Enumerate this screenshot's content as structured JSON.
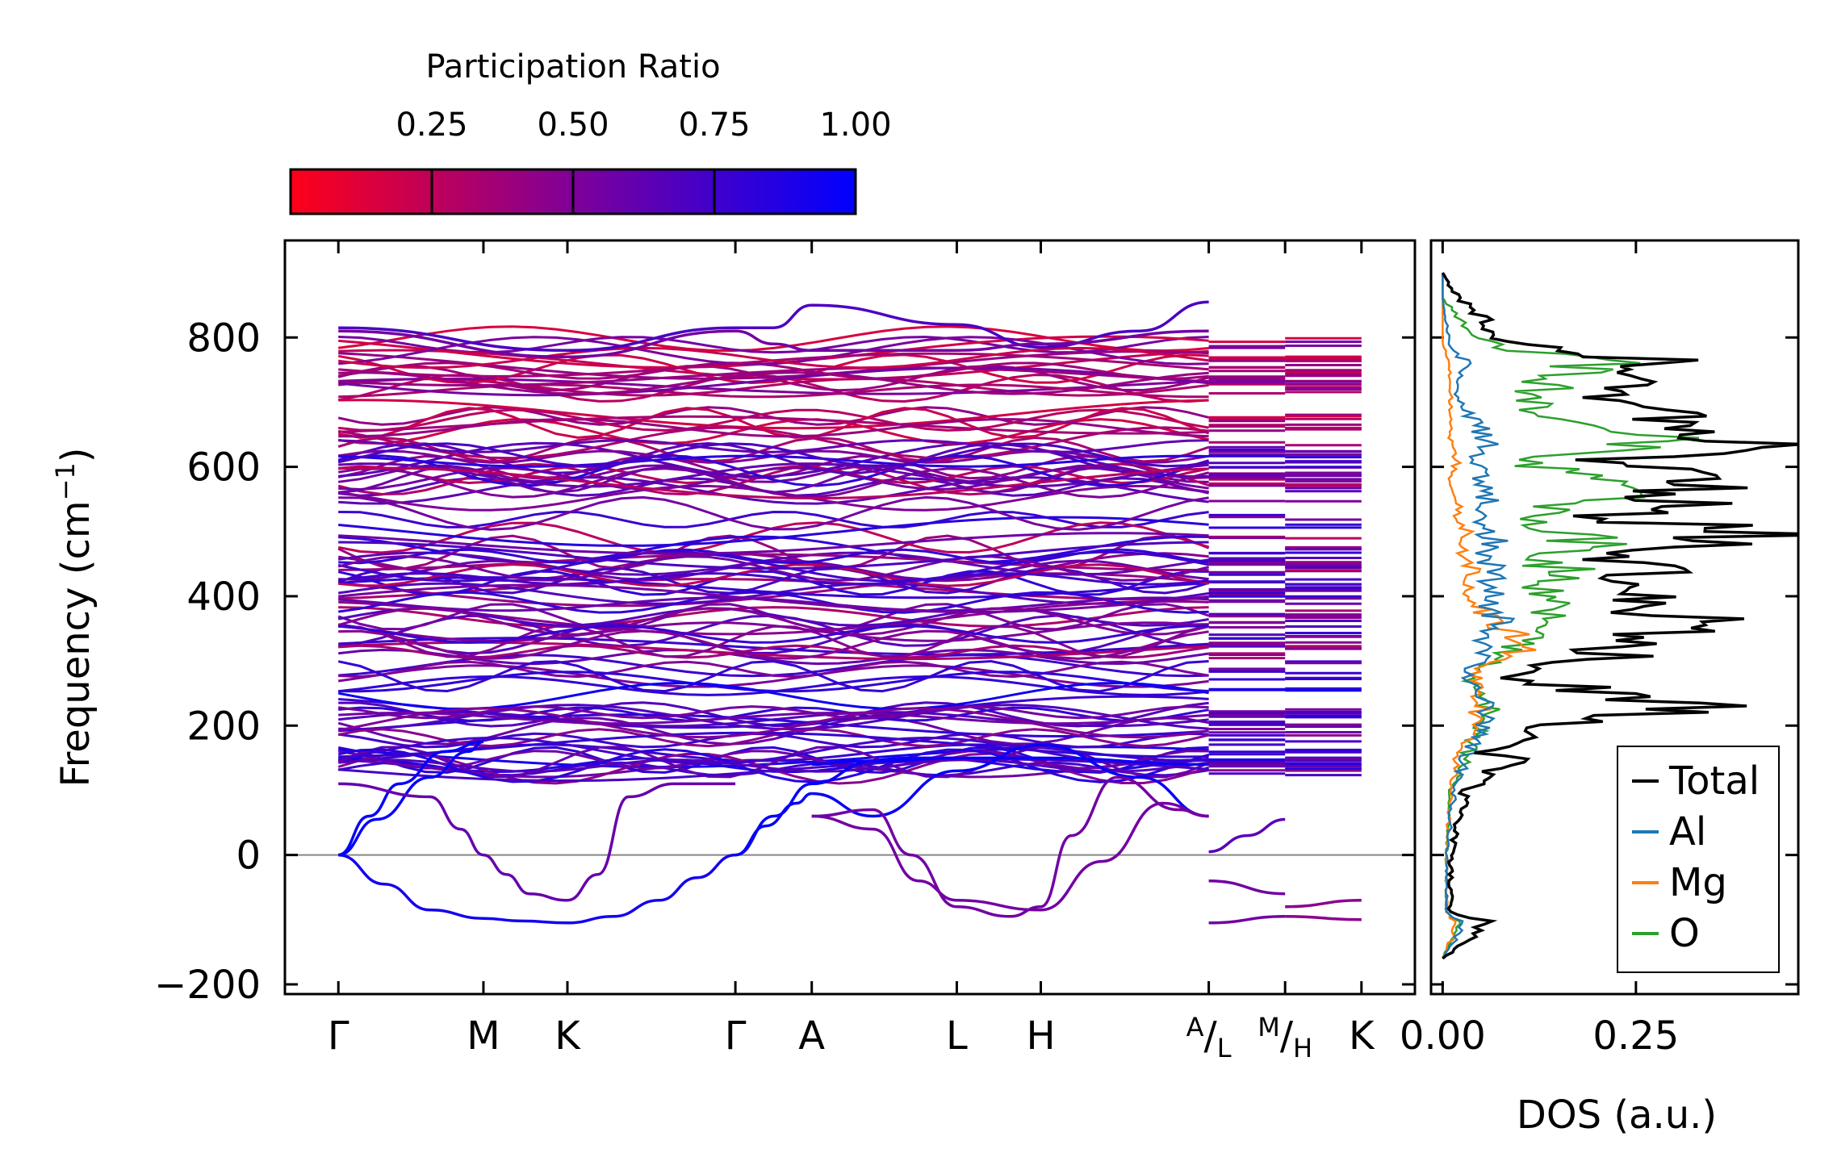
{
  "chart_data": [
    {
      "type": "line",
      "subtype": "phonon-band-structure",
      "ylabel": "Frequency (cm",
      "ylabel_sup": "−1",
      "ylabel_close": ")",
      "ylim": [
        -215,
        950
      ],
      "yticks": [
        -200,
        0,
        200,
        400,
        600,
        800
      ],
      "ytick_labels": [
        "−200",
        "0",
        "200",
        "400",
        "600",
        "800"
      ],
      "high_symmetry_points": [
        {
          "label": "Γ",
          "x": 0.0
        },
        {
          "label": "M",
          "x": 0.19
        },
        {
          "label": "K",
          "x": 0.3
        },
        {
          "label": "Γ",
          "x": 0.52
        },
        {
          "label": "A",
          "x": 0.62
        },
        {
          "label": "L",
          "x": 0.81
        },
        {
          "label": "H",
          "x": 0.92
        },
        {
          "label": "A",
          "sub": "L",
          "x": 1.14
        },
        {
          "label": "M",
          "sub": "H",
          "x": 1.24
        },
        {
          "label": "K",
          "x": 1.34
        }
      ],
      "xlim": [
        -0.07,
        1.41
      ],
      "zero_line": true,
      "acoustic_branches": [
        {
          "x": [
            0,
            0.06,
            0.12,
            0.19,
            0.24,
            0.3
          ],
          "y": [
            0,
            -45,
            -85,
            -98,
            -102,
            -105
          ],
          "pr": 0.92
        },
        {
          "x": [
            0,
            0.05,
            0.12,
            0.17,
            0.19
          ],
          "y": [
            0,
            55,
            120,
            160,
            175
          ],
          "pr": 0.98
        },
        {
          "x": [
            0,
            0.04,
            0.08,
            0.14,
            0.19
          ],
          "y": [
            0,
            60,
            110,
            160,
            175
          ],
          "pr": 0.98
        },
        {
          "x": [
            0.3,
            0.36,
            0.42,
            0.47,
            0.52
          ],
          "y": [
            -105,
            -95,
            -70,
            -35,
            0
          ],
          "pr": 0.92
        },
        {
          "x": [
            0.52,
            0.56,
            0.6,
            0.62
          ],
          "y": [
            0,
            45,
            80,
            95
          ],
          "pr": 0.98
        },
        {
          "x": [
            0.52,
            0.57,
            0.62,
            0.7,
            0.81
          ],
          "y": [
            0,
            60,
            110,
            145,
            150
          ],
          "pr": 0.98
        },
        {
          "x": [
            0.62,
            0.7,
            0.81,
            0.92,
            1.05,
            1.14
          ],
          "y": [
            95,
            60,
            130,
            170,
            120,
            60
          ],
          "pr": 0.96
        },
        {
          "x": [
            0.62,
            0.68,
            0.75,
            0.81,
            0.92,
            1.14
          ],
          "y": [
            140,
            145,
            150,
            150,
            150,
            140
          ],
          "pr": 0.95
        }
      ],
      "soft_modes": [
        {
          "x": [
            0,
            0.12,
            0.16,
            0.19,
            0.22,
            0.25,
            0.3,
            0.34,
            0.38,
            0.44,
            0.52
          ],
          "y": [
            110,
            90,
            40,
            0,
            -30,
            -60,
            -70,
            -30,
            90,
            110,
            110
          ],
          "pr": 0.6
        },
        {
          "x": [
            0.62,
            0.7,
            0.75,
            0.81,
            0.88,
            0.92,
            0.96,
            1.02,
            1.1,
            1.14
          ],
          "y": [
            60,
            70,
            0,
            -80,
            -95,
            -80,
            30,
            120,
            70,
            60
          ],
          "pr": 0.55
        },
        {
          "x": [
            0.62,
            0.7,
            0.76,
            0.81,
            0.92,
            1.0,
            1.08,
            1.14
          ],
          "y": [
            60,
            40,
            -40,
            -70,
            -85,
            -10,
            80,
            60
          ],
          "pr": 0.55
        },
        {
          "x": [
            1.14,
            1.19,
            1.24
          ],
          "y": [
            5,
            30,
            55
          ],
          "pr": 0.65
        },
        {
          "x": [
            1.14,
            1.24
          ],
          "y": [
            -40,
            -60
          ],
          "pr": 0.55
        },
        {
          "x": [
            1.14,
            1.24
          ],
          "y": [
            -105,
            -95
          ],
          "pr": 0.55
        },
        {
          "x": [
            1.24,
            1.34
          ],
          "y": [
            -80,
            -70
          ],
          "pr": 0.45
        },
        {
          "x": [
            1.24,
            1.34
          ],
          "y": [
            -95,
            -100
          ],
          "pr": 0.45
        }
      ],
      "optical_band_region": {
        "ymin": 130,
        "ymax": 855,
        "approx_band_count": 120
      },
      "top_branches": [
        {
          "x": [
            0,
            0.3,
            0.52,
            0.57,
            0.62,
            0.81,
            0.92,
            1.05,
            1.14
          ],
          "y": [
            815,
            780,
            815,
            815,
            850,
            820,
            785,
            810,
            855
          ],
          "pr": 0.7
        },
        {
          "x": [
            0,
            0.3,
            0.52,
            0.57,
            0.62,
            0.81,
            0.92,
            1.14
          ],
          "y": [
            810,
            770,
            810,
            790,
            780,
            780,
            790,
            810
          ],
          "pr": 0.55
        }
      ],
      "colorbar": {
        "label": "Participation Ratio",
        "ticks": [
          0.25,
          0.5,
          0.75,
          1.0
        ],
        "tick_labels": [
          "0.25",
          "0.50",
          "0.75",
          "1.00"
        ],
        "range": [
          0.0,
          1.0
        ],
        "colors": {
          "low": "#ff0019",
          "mid": "#7f0099",
          "high": "#0000ff"
        }
      }
    },
    {
      "type": "line",
      "subtype": "density-of-states",
      "xlabel": "DOS (a.u.)",
      "xlim": [
        -0.015,
        0.46
      ],
      "xticks": [
        0.0,
        0.25
      ],
      "xtick_labels": [
        "0.00",
        "0.25"
      ],
      "ylim": [
        -215,
        950
      ],
      "legend_position": "lower-right",
      "series": [
        {
          "name": "Total",
          "color": "#000000",
          "y": [
            -160,
            -105,
            -90,
            0,
            100,
            150,
            160,
            200,
            230,
            280,
            300,
            340,
            360,
            380,
            400,
            420,
            440,
            460,
            480,
            500,
            520,
            550,
            580,
            610,
            640,
            660,
            700,
            740,
            760,
            790,
            820,
            860,
            900
          ],
          "values": [
            0.0,
            0.06,
            0.01,
            0.01,
            0.03,
            0.09,
            0.05,
            0.14,
            0.33,
            0.07,
            0.2,
            0.28,
            0.34,
            0.24,
            0.3,
            0.26,
            0.29,
            0.22,
            0.34,
            0.42,
            0.2,
            0.32,
            0.34,
            0.2,
            0.45,
            0.35,
            0.2,
            0.22,
            0.33,
            0.08,
            0.06,
            0.02,
            0.0
          ]
        },
        {
          "name": "Al",
          "color": "#1f77b4",
          "y": [
            -160,
            -105,
            -90,
            0,
            100,
            150,
            200,
            230,
            280,
            300,
            340,
            360,
            380,
            400,
            420,
            440,
            460,
            480,
            500,
            520,
            550,
            580,
            610,
            640,
            660,
            700,
            740,
            760,
            790,
            820,
            860,
            900
          ],
          "values": [
            0.0,
            0.03,
            0.005,
            0.005,
            0.015,
            0.03,
            0.05,
            0.06,
            0.03,
            0.05,
            0.06,
            0.08,
            0.06,
            0.08,
            0.06,
            0.07,
            0.05,
            0.07,
            0.06,
            0.05,
            0.06,
            0.05,
            0.04,
            0.06,
            0.05,
            0.02,
            0.02,
            0.03,
            0.01,
            0.005,
            0.0,
            0.0
          ]
        },
        {
          "name": "Mg",
          "color": "#ff7f0e",
          "y": [
            -160,
            -105,
            -90,
            0,
            100,
            150,
            200,
            230,
            280,
            300,
            340,
            360,
            380,
            400,
            420,
            440,
            460,
            480,
            500,
            520,
            550,
            580,
            610,
            640,
            660,
            700,
            740,
            760,
            790,
            820,
            860,
            900
          ],
          "values": [
            0.0,
            0.02,
            0.005,
            0.005,
            0.01,
            0.02,
            0.04,
            0.05,
            0.04,
            0.09,
            0.1,
            0.07,
            0.05,
            0.04,
            0.03,
            0.04,
            0.03,
            0.02,
            0.03,
            0.02,
            0.02,
            0.01,
            0.02,
            0.01,
            0.01,
            0.01,
            0.01,
            0.01,
            0.0,
            0.0,
            0.0,
            0.0
          ]
        },
        {
          "name": "O",
          "color": "#2ca02c",
          "y": [
            -160,
            -105,
            -90,
            0,
            100,
            150,
            200,
            230,
            280,
            300,
            340,
            360,
            380,
            400,
            420,
            440,
            460,
            480,
            500,
            520,
            550,
            580,
            610,
            640,
            660,
            700,
            740,
            760,
            790,
            820,
            860,
            900
          ],
          "values": [
            0.0,
            0.02,
            0.005,
            0.005,
            0.01,
            0.03,
            0.05,
            0.06,
            0.03,
            0.08,
            0.12,
            0.14,
            0.12,
            0.15,
            0.13,
            0.16,
            0.1,
            0.2,
            0.16,
            0.1,
            0.2,
            0.2,
            0.1,
            0.3,
            0.18,
            0.12,
            0.15,
            0.2,
            0.06,
            0.03,
            0.0,
            0.0
          ]
        }
      ]
    }
  ]
}
